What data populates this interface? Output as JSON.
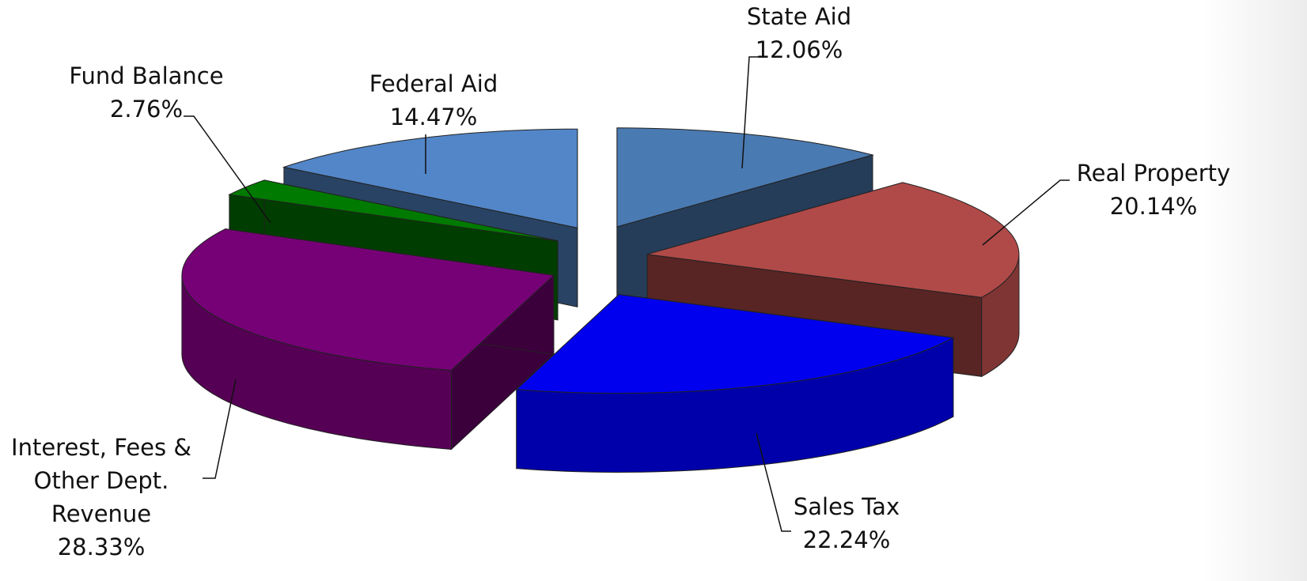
{
  "chart_data": {
    "type": "pie",
    "categories": [
      "State Aid",
      "Real Property",
      "Sales Tax",
      "Interest, Fees & Other Dept. Revenue",
      "Fund Balance",
      "Federal Aid"
    ],
    "values": [
      12.06,
      20.14,
      22.24,
      28.33,
      2.76,
      14.47
    ],
    "value_labels": [
      "12.06%",
      "20.14%",
      "22.24%",
      "28.33%",
      "2.76%",
      "14.47%"
    ],
    "colors": [
      "#4a7ab2",
      "#b04a48",
      "#0000ee",
      "#760076",
      "#007a00",
      "#5286c8"
    ]
  }
}
